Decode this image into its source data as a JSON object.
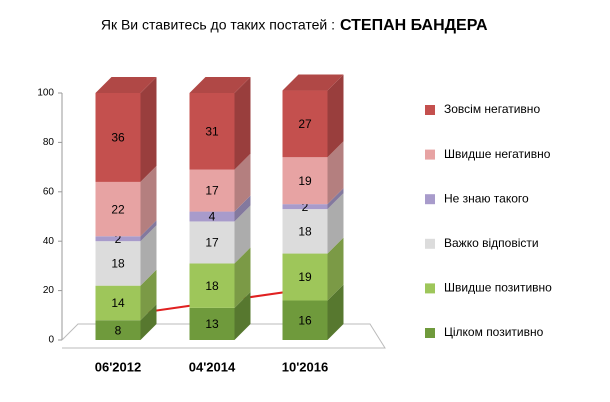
{
  "chart_data": {
    "type": "bar3d_stacked",
    "title": "Як Ви ставитесь до таких постатей :",
    "title_subject": "СТЕПАН БАНДЕРА",
    "categories": [
      "06'2012",
      "04'2014",
      "10'2016"
    ],
    "series": [
      {
        "name": "Цілком позитивно",
        "color": "#6f9a3c",
        "values": [
          8,
          13,
          16
        ]
      },
      {
        "name": "Швидше позитивно",
        "color": "#9ec65a",
        "values": [
          14,
          18,
          19
        ]
      },
      {
        "name": "Важко відповісти",
        "color": "#dcdcdc",
        "values": [
          18,
          17,
          18
        ]
      },
      {
        "name": "Не знаю такого",
        "color": "#a89bcb",
        "values": [
          2,
          4,
          2
        ]
      },
      {
        "name": "Швидше негативно",
        "color": "#e7a3a3",
        "values": [
          22,
          17,
          19
        ]
      },
      {
        "name": "Зовсім негативно",
        "color": "#c4504e",
        "values": [
          36,
          31,
          27
        ]
      }
    ],
    "ylim": [
      0,
      100
    ],
    "yticks": [
      0,
      20,
      40,
      60,
      80,
      100
    ]
  }
}
